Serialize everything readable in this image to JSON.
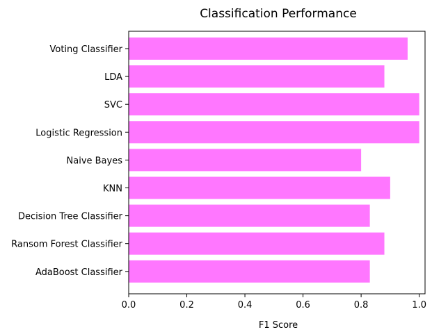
{
  "chart_data": {
    "type": "bar",
    "orientation": "horizontal",
    "title": "Classification Performance",
    "xlabel": "F1 Score",
    "ylabel": "",
    "xlim": [
      0.0,
      1.02
    ],
    "xticks": [
      "0.0",
      "0.2",
      "0.4",
      "0.6",
      "0.8",
      "1.0"
    ],
    "xtick_values": [
      0.0,
      0.2,
      0.4,
      0.6,
      0.8,
      1.0
    ],
    "categories": [
      "Voting Classifier",
      "LDA",
      "SVC",
      "Logistic Regression",
      "Naive Bayes",
      "KNN",
      "Decision Tree Classifier",
      "Ransom Forest Classifier",
      "AdaBoost Classifier"
    ],
    "values": [
      0.96,
      0.88,
      1.0,
      1.0,
      0.8,
      0.9,
      0.83,
      0.88,
      0.83
    ],
    "bar_color": "#ff77ff",
    "grid": false,
    "legend": "none"
  }
}
